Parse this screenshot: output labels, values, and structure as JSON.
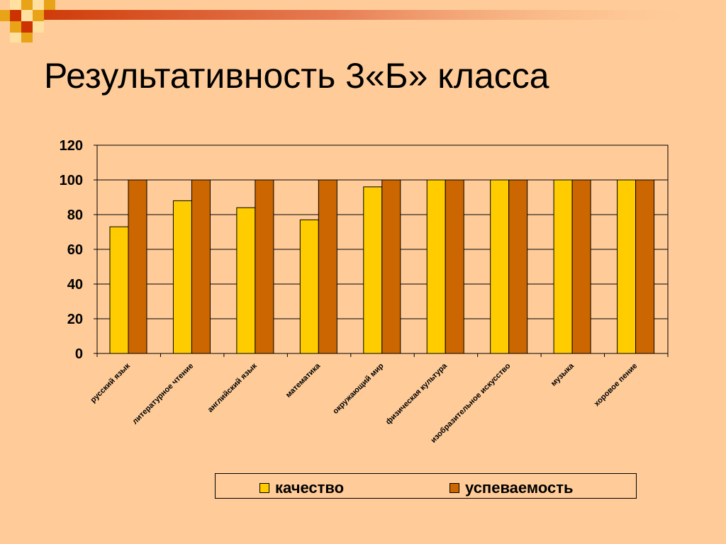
{
  "slide": {
    "title": "Результативность 3«Б» класса"
  },
  "colors": {
    "background": "#FFCC99",
    "series_quality": "#FFCC00",
    "series_progress": "#CC6600",
    "decor_red": "#CC3300",
    "decor_gold": "#E8A317"
  },
  "chart_data": {
    "type": "bar",
    "categories": [
      "русский язык",
      "литературное чтение",
      "английский язык",
      "математика",
      "окружающий мир",
      "физическая культура",
      "изобразительное искусство",
      "музыка",
      "хоровое пение"
    ],
    "series": [
      {
        "name": "качество",
        "values": [
          73,
          88,
          84,
          77,
          96,
          100,
          100,
          100,
          100
        ]
      },
      {
        "name": "успеваемость",
        "values": [
          100,
          100,
          100,
          100,
          100,
          100,
          100,
          100,
          100
        ]
      }
    ],
    "yticks": [
      "0",
      "20",
      "40",
      "60",
      "80",
      "100",
      "120"
    ],
    "ylim": [
      0,
      120
    ],
    "grid": true,
    "legend_position": "bottom"
  }
}
